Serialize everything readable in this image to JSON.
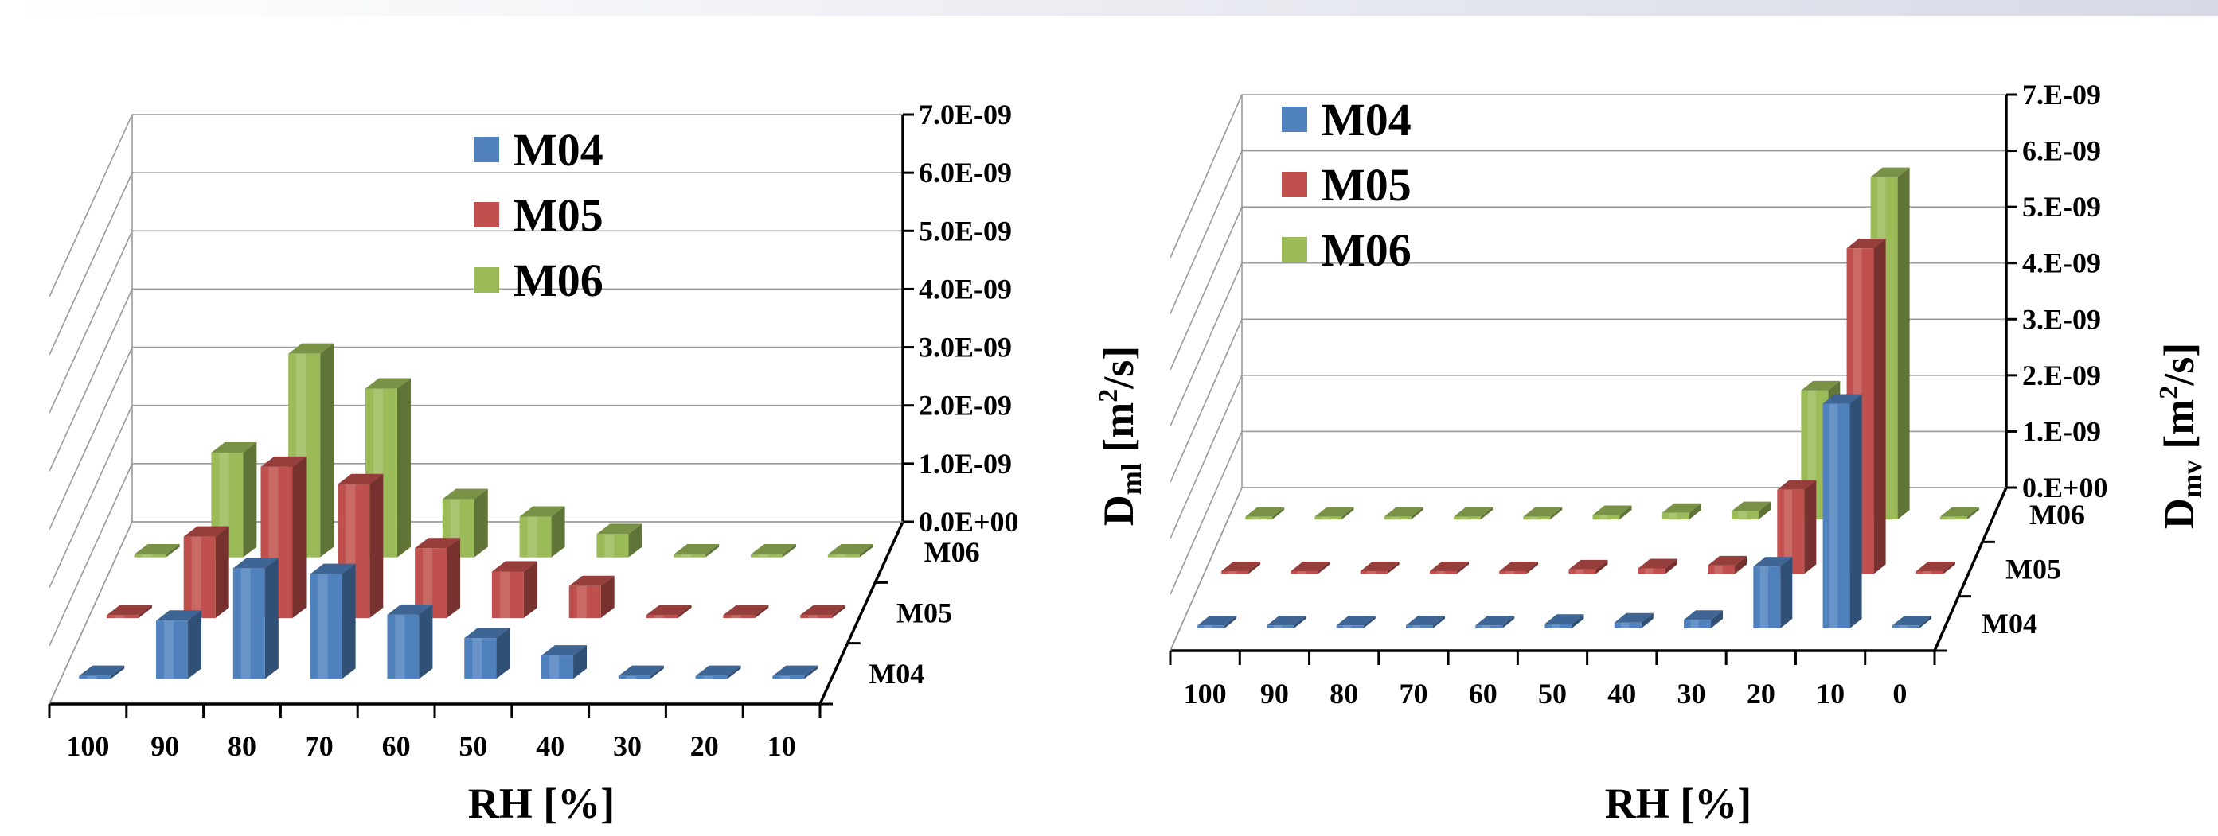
{
  "chart_data": [
    {
      "type": "bar",
      "variant": "3d-column",
      "title": "",
      "xlabel": "RH [%]",
      "ylabel": "",
      "categories": [
        "100",
        "90",
        "80",
        "70",
        "60",
        "50",
        "40",
        "30",
        "20",
        "10"
      ],
      "depth_labels": [
        "M04",
        "M05",
        "M06"
      ],
      "yticks": [
        "0.0E+00",
        "1.0E-09",
        "2.0E-09",
        "3.0E-09",
        "4.0E-09",
        "5.0E-09",
        "6.0E-09",
        "7.0E-09"
      ],
      "ylim": [
        0,
        7e-09
      ],
      "legend_position": "top-center",
      "series": [
        {
          "name": "M04",
          "color": "#4f81bd",
          "values": [
            5e-11,
            1e-09,
            1.9e-09,
            1.8e-09,
            1.1e-09,
            7e-10,
            4e-10,
            5e-11,
            5e-11,
            5e-11
          ]
        },
        {
          "name": "M05",
          "color": "#c0504d",
          "values": [
            5e-11,
            1.4e-09,
            2.6e-09,
            2.3e-09,
            1.2e-09,
            8e-10,
            5.5e-10,
            5e-11,
            5e-11,
            5e-11
          ]
        },
        {
          "name": "M06",
          "color": "#9bbb59",
          "values": [
            5e-11,
            1.8e-09,
            3.5e-09,
            2.9e-09,
            1e-09,
            7e-10,
            4e-10,
            5e-11,
            5e-11,
            5e-11
          ]
        }
      ]
    },
    {
      "type": "bar",
      "variant": "3d-column",
      "title": "",
      "xlabel": "RH [%]",
      "ylabel_left": "Dml [m2/s]",
      "ylabel_right": "Dmv [m2/s]",
      "ylabel_left_parts": {
        "base": "D",
        "sub": "ml",
        "mid": " [m",
        "sup": "2",
        "end": "/s]"
      },
      "ylabel_right_parts": {
        "base": "D",
        "sub": "mv",
        "mid": " [m",
        "sup": "2",
        "end": "/s]"
      },
      "categories": [
        "100",
        "90",
        "80",
        "70",
        "60",
        "50",
        "40",
        "30",
        "20",
        "10",
        "0"
      ],
      "depth_labels": [
        "M04",
        "M05",
        "M06"
      ],
      "yticks": [
        "0.E+00",
        "1.E-09",
        "2.E-09",
        "3.E-09",
        "4.E-09",
        "5.E-09",
        "6.E-09",
        "7.E-09"
      ],
      "ylim": [
        0,
        7e-09
      ],
      "legend_position": "top-left",
      "series": [
        {
          "name": "M04",
          "color": "#4f81bd",
          "values": [
            5e-11,
            5e-11,
            5e-11,
            5e-11,
            5e-11,
            8e-11,
            1e-10,
            1.5e-10,
            1.1e-09,
            4e-09,
            5e-11
          ]
        },
        {
          "name": "M05",
          "color": "#c0504d",
          "values": [
            5e-11,
            5e-11,
            5e-11,
            5e-11,
            5e-11,
            8e-11,
            1e-10,
            1.5e-10,
            1.5e-09,
            5.8e-09,
            5e-11
          ]
        },
        {
          "name": "M06",
          "color": "#9bbb59",
          "values": [
            5e-11,
            5e-11,
            5e-11,
            5e-11,
            5e-11,
            8e-11,
            1.2e-10,
            1.5e-10,
            2.3e-09,
            6.1e-09,
            5e-11
          ]
        }
      ]
    }
  ]
}
